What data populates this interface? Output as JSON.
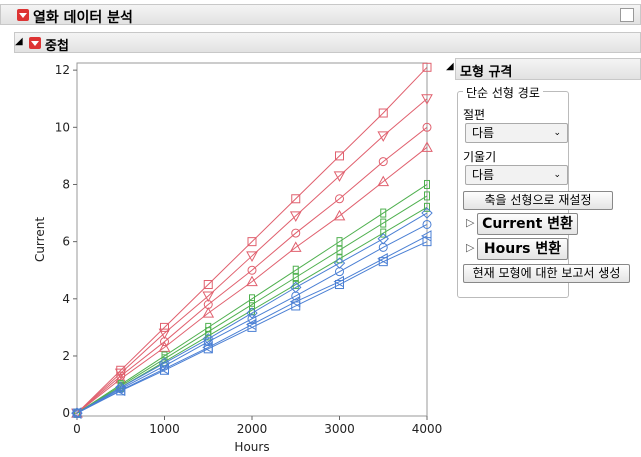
{
  "window": {
    "title": "열화 데이터 분석",
    "section": "중첩"
  },
  "panel": {
    "title": "모형 규격",
    "group": "단순 선형 경로",
    "intercept_label": "절편",
    "intercept_value": "다름",
    "slope_label": "기울기",
    "slope_value": "다름",
    "reset_button": "축을 선형으로 재설정",
    "current_transform": "Current 변환",
    "hours_transform": "Hours 변환",
    "report_button": "현재 모형에 대한 보고서 생성"
  },
  "chart_data": {
    "type": "line",
    "x_label": "Hours",
    "y_label": "Current",
    "x": [
      0,
      500,
      1000,
      1500,
      2000,
      2500,
      3000,
      3500,
      4000
    ],
    "xlim": [
      0,
      4000
    ],
    "xticks": [
      0,
      1000,
      2000,
      3000,
      4000
    ],
    "ylim": [
      -0.1,
      12.25
    ],
    "yticks": [
      0,
      2,
      4,
      6,
      8,
      10,
      12
    ],
    "series": [
      {
        "color": "#e0606e",
        "marker": "square",
        "values": [
          0,
          1.5,
          3,
          4.5,
          6,
          7.5,
          9,
          10.5,
          12.1
        ]
      },
      {
        "color": "#e0606e",
        "marker": "down-triangle",
        "values": [
          0,
          1.4,
          2.8,
          4.1,
          5.5,
          6.9,
          8.3,
          9.7,
          11.0
        ]
      },
      {
        "color": "#e0606e",
        "marker": "circle",
        "values": [
          0,
          1.3,
          2.5,
          3.8,
          5.0,
          6.3,
          7.5,
          8.8,
          10.0
        ]
      },
      {
        "color": "#e0606e",
        "marker": "triangle",
        "values": [
          0,
          1.2,
          2.3,
          3.5,
          4.6,
          5.8,
          6.9,
          8.1,
          9.3
        ]
      },
      {
        "color": "#4fb04f",
        "marker": "rect",
        "values": [
          0,
          1.0,
          2.0,
          3.0,
          4.0,
          5.0,
          6.0,
          7.0,
          8.0
        ]
      },
      {
        "color": "#4fb04f",
        "marker": "rect",
        "values": [
          0,
          0.95,
          1.9,
          2.85,
          3.8,
          4.75,
          5.7,
          6.65,
          7.6
        ]
      },
      {
        "color": "#4fb04f",
        "marker": "rect",
        "values": [
          0,
          0.9,
          1.8,
          2.7,
          3.6,
          4.5,
          5.4,
          6.3,
          7.2
        ]
      },
      {
        "color": "#4a7fd4",
        "marker": "diamond",
        "values": [
          0,
          0.9,
          1.75,
          2.6,
          3.5,
          4.4,
          5.25,
          6.1,
          7.0
        ]
      },
      {
        "color": "#4a7fd4",
        "marker": "circle",
        "values": [
          0,
          0.85,
          1.65,
          2.5,
          3.3,
          4.1,
          4.95,
          5.8,
          6.6
        ]
      },
      {
        "color": "#4a7fd4",
        "marker": "left-triangle",
        "values": [
          0,
          0.8,
          1.55,
          2.3,
          3.1,
          3.9,
          4.6,
          5.4,
          6.2
        ]
      },
      {
        "color": "#4a7fd4",
        "marker": "square",
        "values": [
          0,
          0.78,
          1.5,
          2.25,
          3.0,
          3.75,
          4.5,
          5.3,
          6.0
        ]
      }
    ]
  }
}
